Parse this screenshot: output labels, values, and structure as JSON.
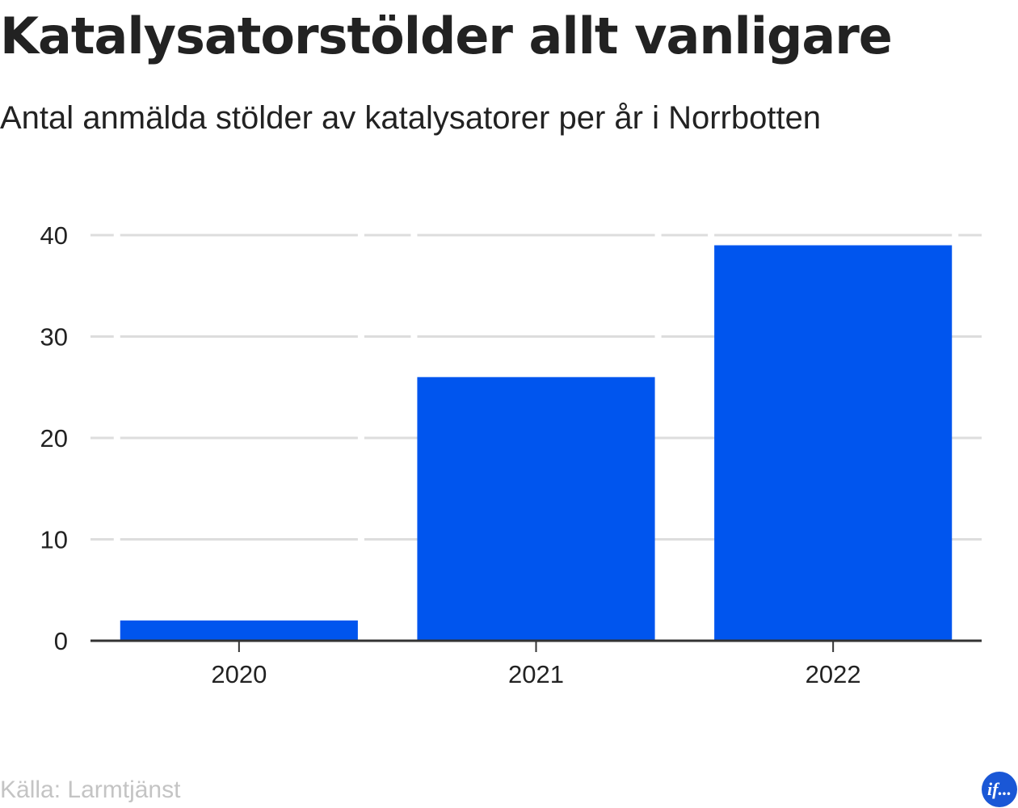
{
  "title": "Katalysatorstölder allt vanligare",
  "subtitle": "Antal anmälda stölder av katalysatorer per år i Norrbotten",
  "source": "Källa: Larmtjänst",
  "logo_text": "if...",
  "colors": {
    "bar": "#0055ee",
    "grid": "#dddddd",
    "axis": "#333333",
    "text": "#222222",
    "source": "#c4c4c4",
    "logo": "#1a57d6"
  },
  "chart_data": {
    "type": "bar",
    "categories": [
      "2020",
      "2021",
      "2022"
    ],
    "values": [
      2,
      26,
      39
    ],
    "ylim": [
      0,
      40
    ],
    "yticks": [
      0,
      10,
      20,
      30,
      40
    ],
    "xlabel": "",
    "ylabel": "",
    "grid": true,
    "legend": "none"
  }
}
